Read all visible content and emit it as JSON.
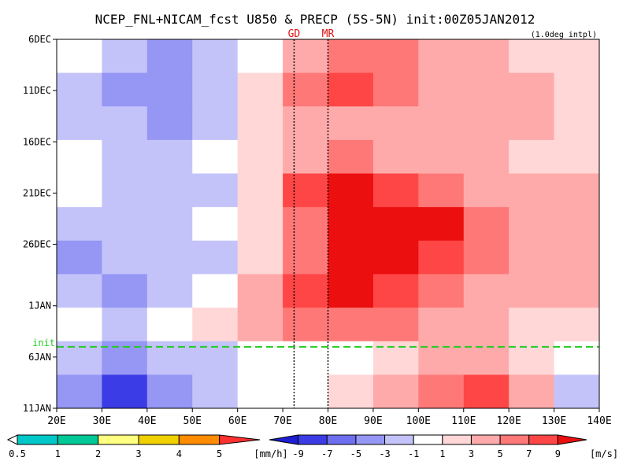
{
  "chart_data": {
    "type": "heatmap",
    "title": "NCEP_FNL+NICAM_fcst U850 & PRECP (5S-5N) init:00Z05JAN2012",
    "subtitle": "(1.0deg intpl)",
    "x_ticks": [
      "20E",
      "30E",
      "40E",
      "50E",
      "60E",
      "70E",
      "80E",
      "90E",
      "100E",
      "110E",
      "120E",
      "130E",
      "140E"
    ],
    "xlim": [
      20,
      140
    ],
    "y_ticks": [
      "6DEC",
      "11DEC",
      "16DEC",
      "21DEC",
      "26DEC",
      "1JAN",
      "6JAN",
      "11JAN"
    ],
    "y_tick_days": [
      0,
      5,
      10,
      15,
      20,
      26,
      31,
      36
    ],
    "ylim_days": [
      0,
      36
    ],
    "init_label": "init",
    "init_day": 30,
    "markers": [
      {
        "label": "GD",
        "lon": 72.5
      },
      {
        "label": "MR",
        "lon": 80
      }
    ],
    "u850_field": {
      "rows": [
        [
          -1,
          -3,
          -5,
          -3,
          -1,
          3,
          5,
          5,
          3,
          3,
          1,
          1
        ],
        [
          -3,
          -5,
          -5,
          -3,
          1,
          5,
          7,
          5,
          3,
          3,
          3,
          1
        ],
        [
          -3,
          -3,
          -5,
          -3,
          1,
          3,
          3,
          3,
          3,
          3,
          3,
          1
        ],
        [
          -1,
          -3,
          -3,
          -1,
          1,
          3,
          5,
          3,
          3,
          3,
          1,
          1
        ],
        [
          -1,
          -3,
          -3,
          -3,
          1,
          7,
          9,
          7,
          5,
          3,
          3,
          3
        ],
        [
          -3,
          -3,
          -3,
          -1,
          1,
          5,
          9,
          9,
          9,
          5,
          3,
          3
        ],
        [
          -5,
          -3,
          -3,
          -3,
          1,
          5,
          9,
          9,
          7,
          5,
          3,
          3
        ],
        [
          -3,
          -5,
          -3,
          -1,
          3,
          7,
          9,
          7,
          5,
          3,
          3,
          3
        ],
        [
          -1,
          -3,
          -1,
          1,
          3,
          5,
          5,
          5,
          3,
          3,
          1,
          1
        ],
        [
          -3,
          -5,
          -3,
          -3,
          -1,
          -1,
          -1,
          1,
          3,
          3,
          1,
          -1
        ],
        [
          -5,
          -9,
          -5,
          -3,
          -1,
          -1,
          1,
          3,
          5,
          7,
          3,
          -3
        ]
      ]
    },
    "precip_legend": {
      "labels": [
        "0.5",
        "1",
        "2",
        "3",
        "4",
        "5"
      ],
      "unit": "[mm/h]",
      "colors": [
        "#00c8c8",
        "#00c896",
        "#ffff80",
        "#f0d000",
        "#ff8c00",
        "#ff3030"
      ]
    },
    "u850_legend": {
      "labels": [
        "-9",
        "-7",
        "-5",
        "-3",
        "-1",
        "1",
        "3",
        "5",
        "7",
        "9"
      ],
      "unit": "[m/s]",
      "colors": [
        "#1e1ed2",
        "#3c3ce6",
        "#6e6ef0",
        "#9696f5",
        "#c3c3fa",
        "#ffffff",
        "#ffd7d7",
        "#ffaaaa",
        "#ff7878",
        "#ff4646",
        "#eb0f0f"
      ]
    },
    "grid": false
  }
}
